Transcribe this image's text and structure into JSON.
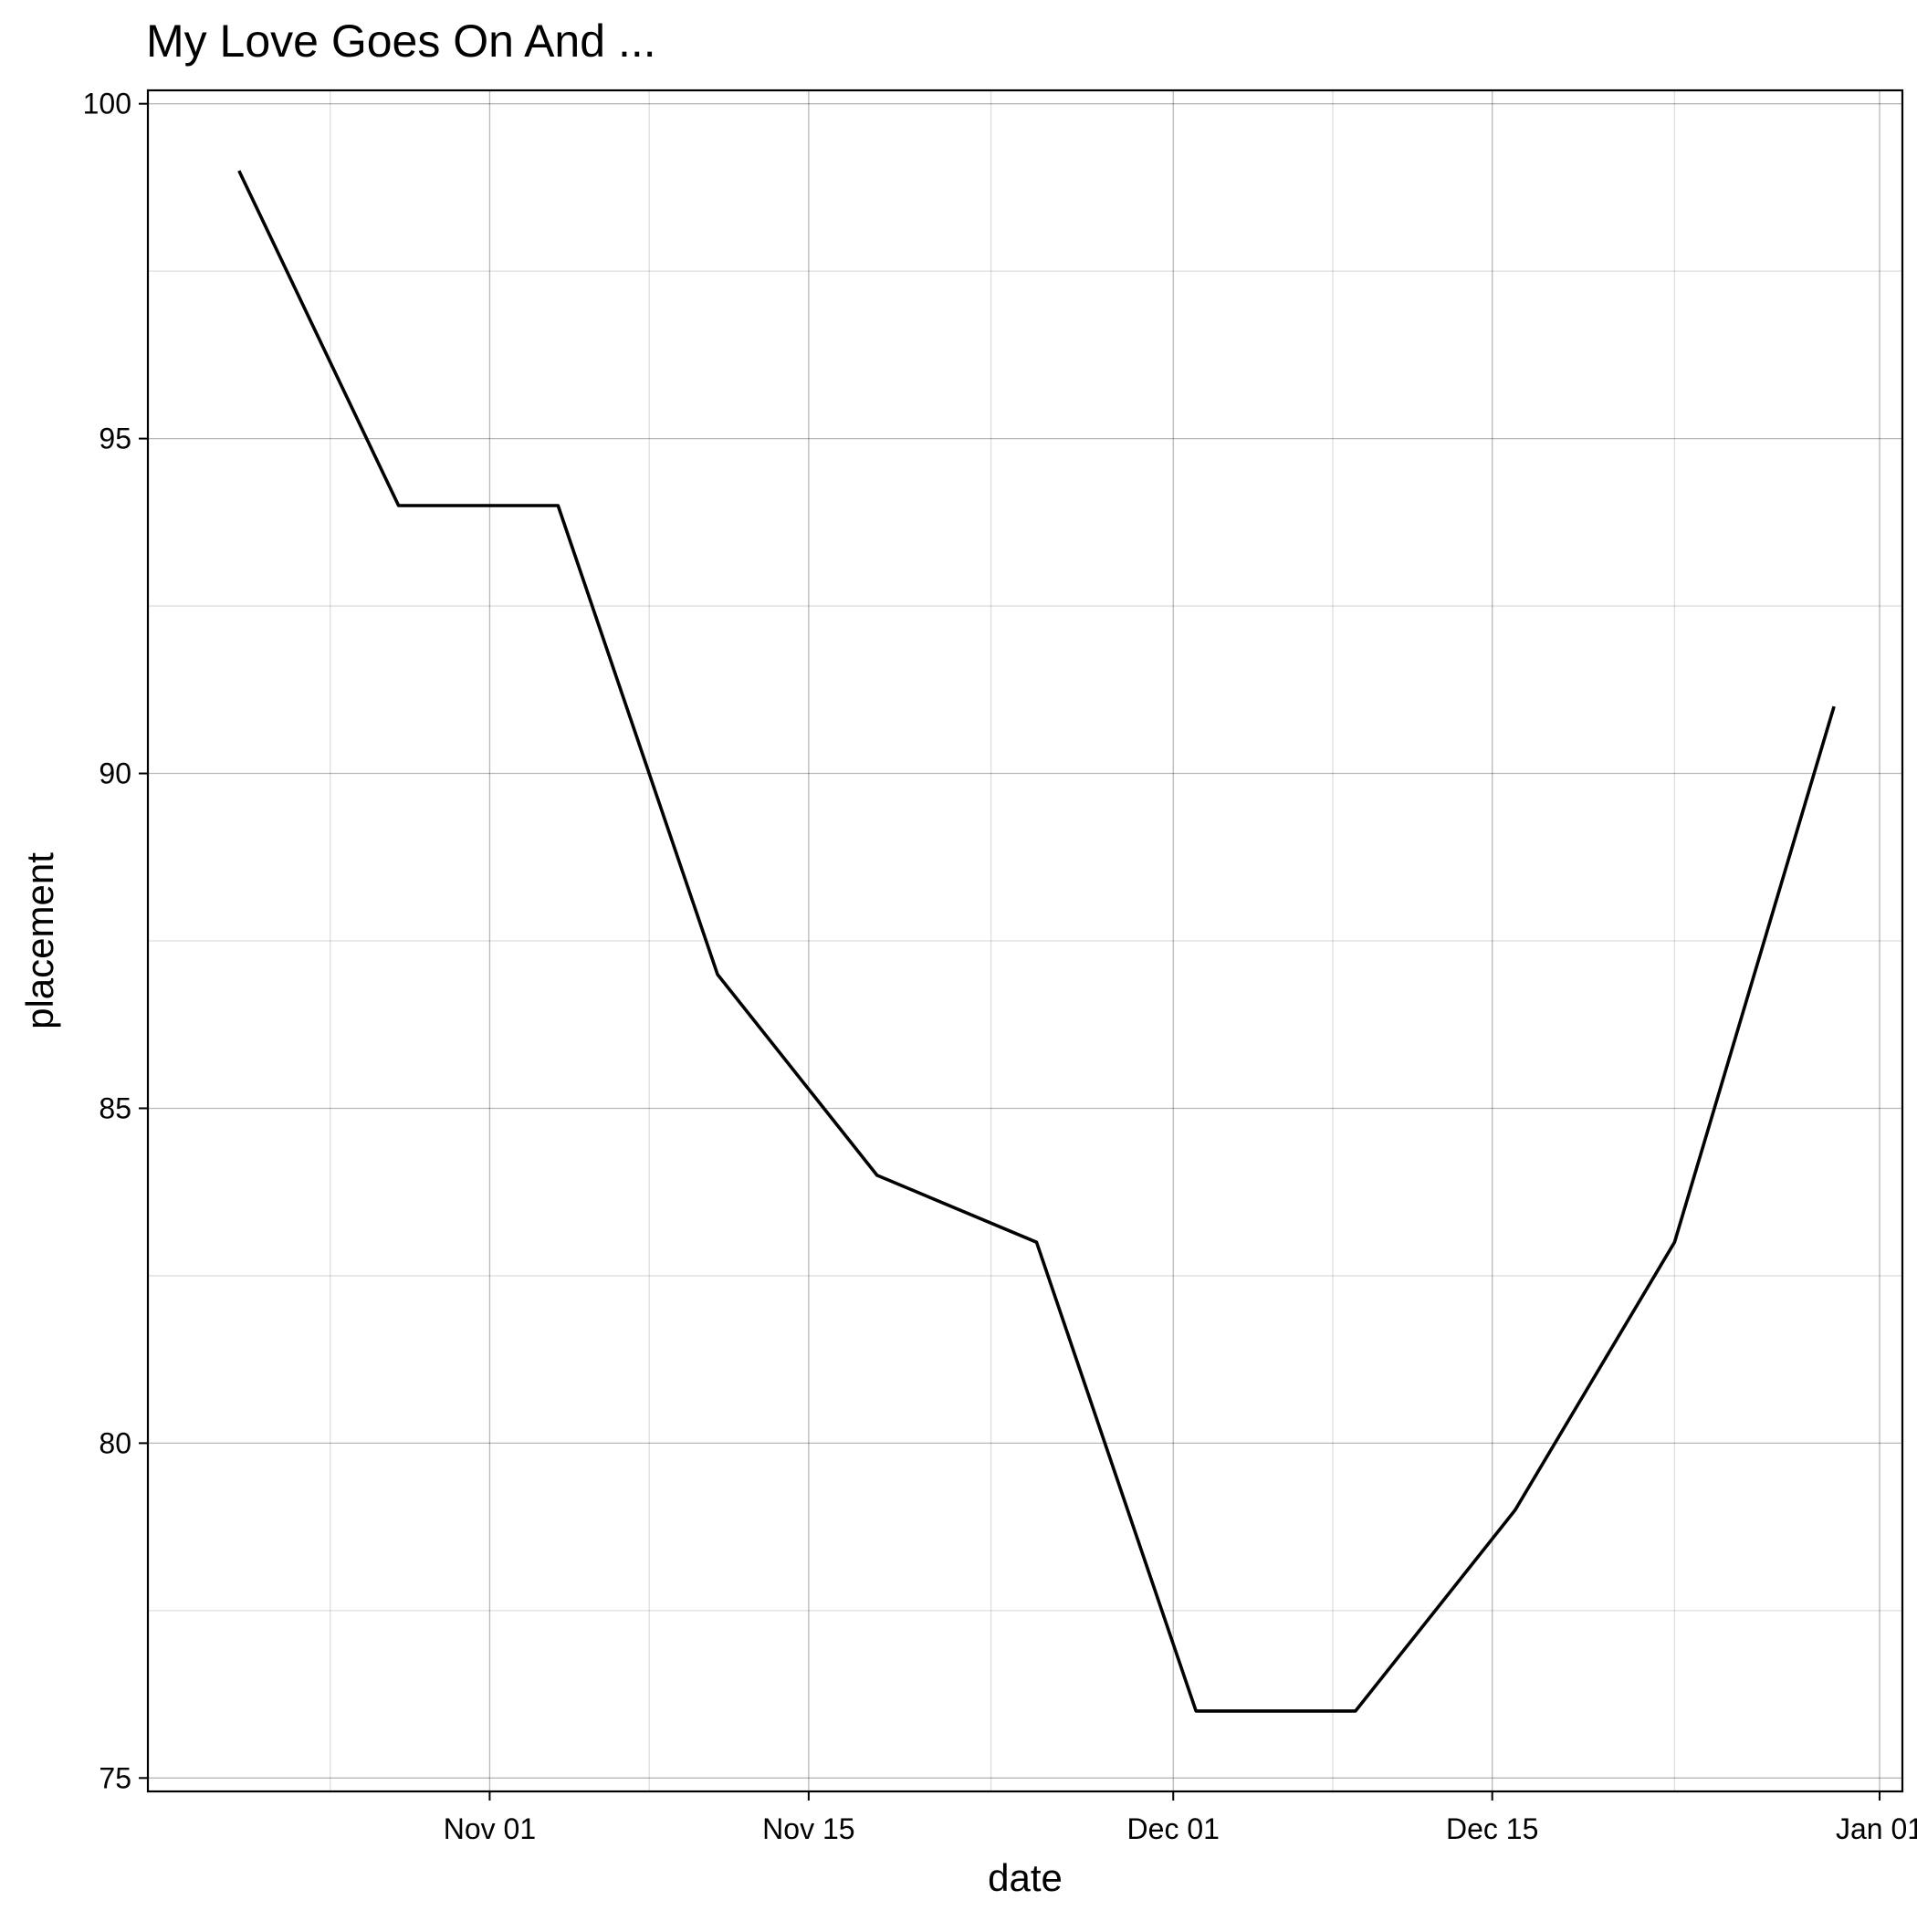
{
  "chart_data": {
    "type": "line",
    "title": "My Love Goes On And ...",
    "xlabel": "date",
    "ylabel": "placement",
    "x_type": "date",
    "xlim": [
      "2023-10-17",
      "2024-01-02"
    ],
    "ylim": [
      74.8,
      100.2
    ],
    "x_ticks": [
      {
        "date": "2023-11-01",
        "label": "Nov 01"
      },
      {
        "date": "2023-11-15",
        "label": "Nov 15"
      },
      {
        "date": "2023-12-01",
        "label": "Dec 01"
      },
      {
        "date": "2023-12-15",
        "label": "Dec 15"
      },
      {
        "date": "2024-01-01",
        "label": "Jan 01"
      }
    ],
    "x_minor_ticks": [
      "2023-10-25",
      "2023-11-08",
      "2023-11-23",
      "2023-12-08",
      "2023-12-23"
    ],
    "y_ticks": [
      75,
      80,
      85,
      90,
      95,
      100
    ],
    "y_minor_ticks": [
      77.5,
      82.5,
      87.5,
      92.5,
      97.5
    ],
    "grid": true,
    "legend": false,
    "series": [
      {
        "color": "#000000",
        "points": [
          {
            "x": "2023-10-21",
            "y": 99
          },
          {
            "x": "2023-10-28",
            "y": 94
          },
          {
            "x": "2023-11-04",
            "y": 94
          },
          {
            "x": "2023-11-11",
            "y": 87
          },
          {
            "x": "2023-11-18",
            "y": 84
          },
          {
            "x": "2023-11-25",
            "y": 83
          },
          {
            "x": "2023-12-02",
            "y": 76
          },
          {
            "x": "2023-12-09",
            "y": 76
          },
          {
            "x": "2023-12-16",
            "y": 79
          },
          {
            "x": "2023-12-23",
            "y": 83
          },
          {
            "x": "2023-12-30",
            "y": 91
          }
        ]
      }
    ]
  }
}
